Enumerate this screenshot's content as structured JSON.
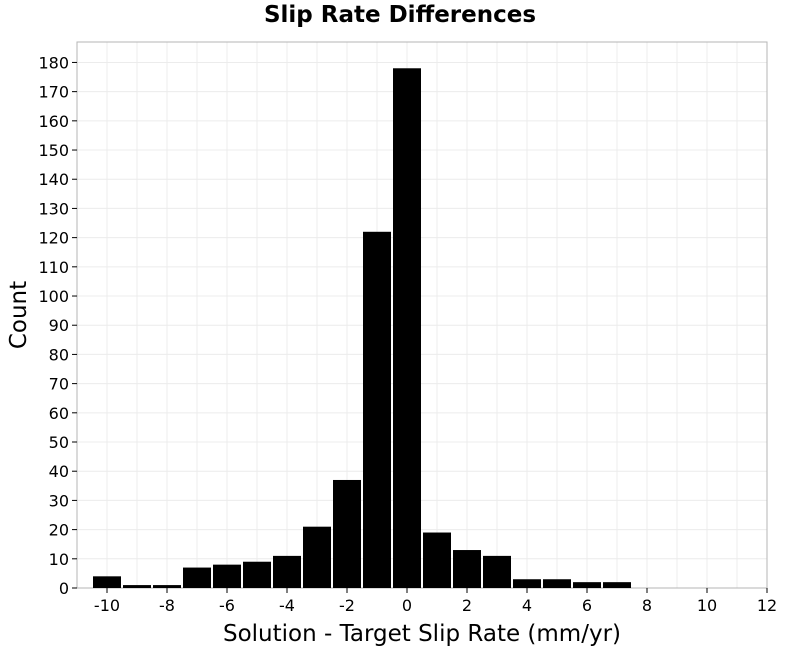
{
  "chart_data": {
    "type": "bar",
    "title": "Slip Rate Differences",
    "xlabel": "Solution - Target Slip Rate (mm/yr)",
    "ylabel": "Count",
    "xlim": [
      -11,
      12
    ],
    "ylim": [
      0,
      187
    ],
    "x_ticks": [
      -10,
      -8,
      -6,
      -4,
      -2,
      0,
      2,
      4,
      6,
      8,
      10,
      12
    ],
    "y_ticks": [
      0,
      10,
      20,
      30,
      40,
      50,
      60,
      70,
      80,
      90,
      100,
      110,
      120,
      130,
      140,
      150,
      160,
      170,
      180
    ],
    "bin_width": 1,
    "bins": [
      {
        "x": -10,
        "count": 4
      },
      {
        "x": -9,
        "count": 1
      },
      {
        "x": -8,
        "count": 1
      },
      {
        "x": -7,
        "count": 7
      },
      {
        "x": -6,
        "count": 8
      },
      {
        "x": -5,
        "count": 9
      },
      {
        "x": -4,
        "count": 11
      },
      {
        "x": -3,
        "count": 21
      },
      {
        "x": -2,
        "count": 37
      },
      {
        "x": -1,
        "count": 122
      },
      {
        "x": 0,
        "count": 178
      },
      {
        "x": 1,
        "count": 19
      },
      {
        "x": 2,
        "count": 13
      },
      {
        "x": 3,
        "count": 11
      },
      {
        "x": 4,
        "count": 3
      },
      {
        "x": 5,
        "count": 3
      },
      {
        "x": 6,
        "count": 2
      },
      {
        "x": 7,
        "count": 2
      }
    ],
    "grid": true,
    "bar_color": "#000000",
    "grid_color": "#ececec"
  }
}
